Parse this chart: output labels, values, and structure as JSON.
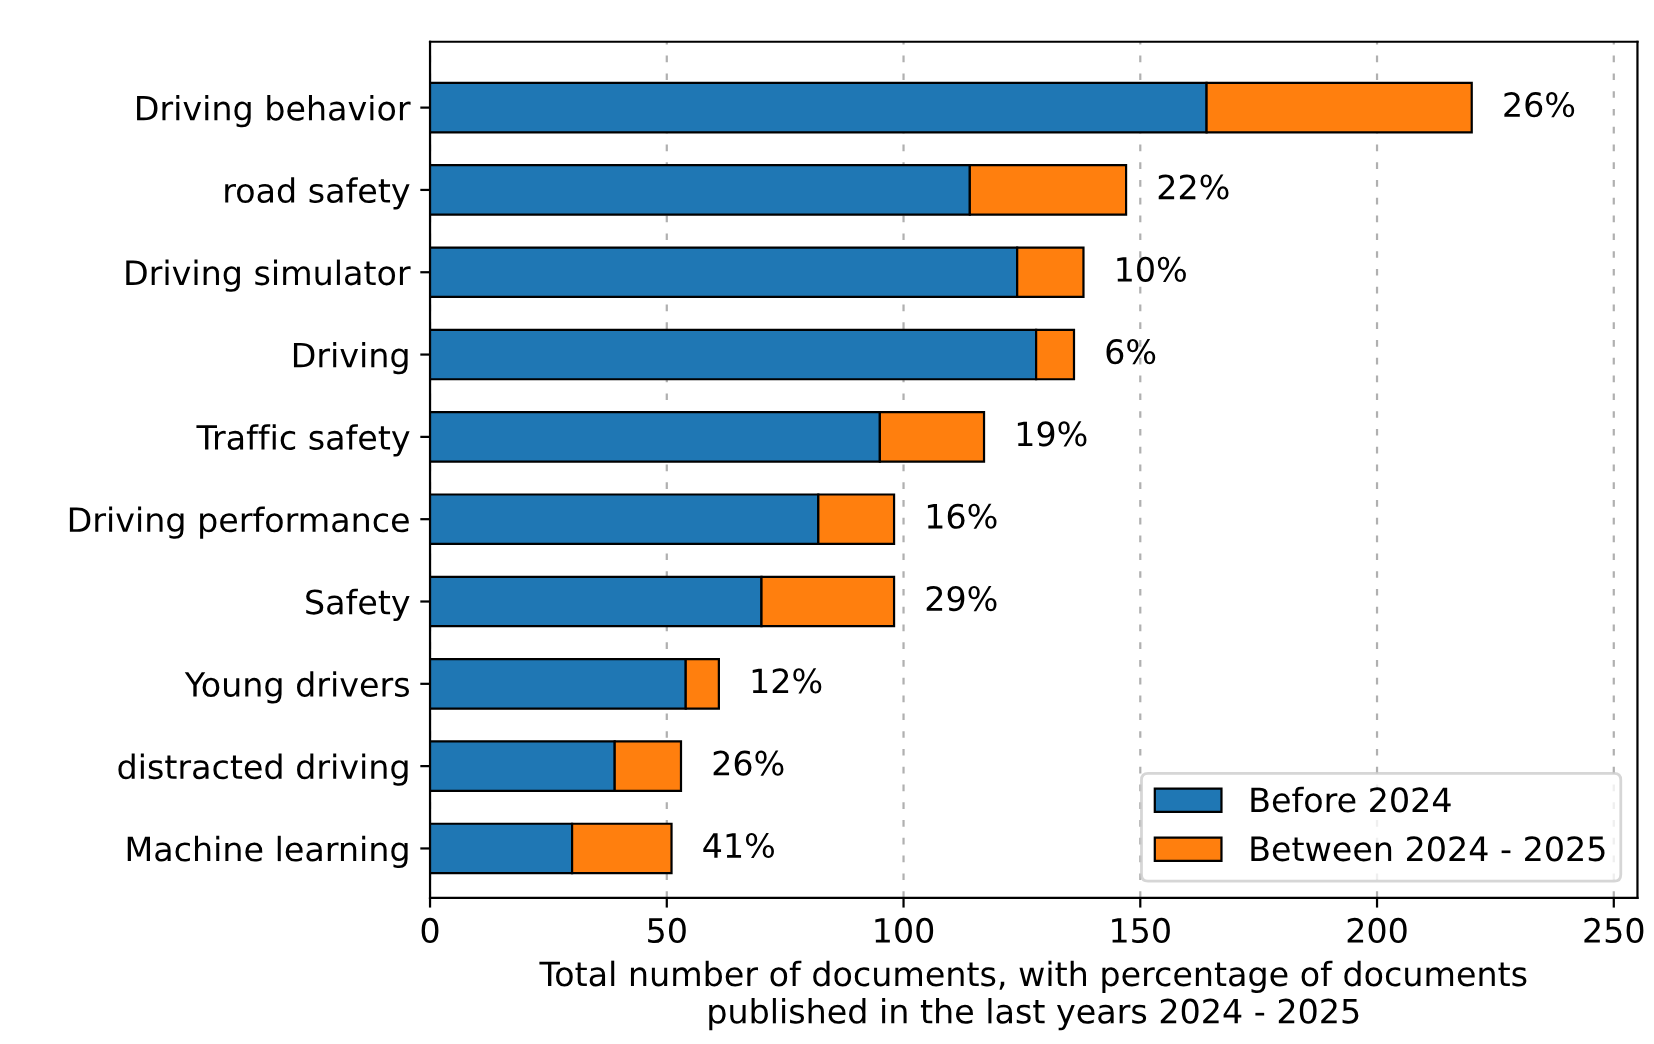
{
  "chart_data": {
    "type": "bar",
    "orientation": "horizontal",
    "stacked": true,
    "categories": [
      "Driving behavior",
      "road safety",
      "Driving simulator",
      "Driving",
      "Traffic safety",
      "Driving performance",
      "Safety",
      "Young drivers",
      "distracted driving",
      "Machine learning"
    ],
    "series": [
      {
        "name": "Before 2024",
        "color": "#1f77b4",
        "values": [
          164,
          114,
          124,
          128,
          95,
          82,
          70,
          54,
          39,
          30
        ]
      },
      {
        "name": "Between 2024 - 2025",
        "color": "#ff7f0e",
        "values": [
          56,
          33,
          14,
          8,
          22,
          16,
          28,
          7,
          14,
          21
        ]
      }
    ],
    "annotations": [
      {
        "text": "26%",
        "x": 220,
        "y": "Driving behavior"
      },
      {
        "text": "22%",
        "x": 147,
        "y": "road safety"
      },
      {
        "text": "10%",
        "x": 138,
        "y": "Driving simulator"
      },
      {
        "text": "6%",
        "x": 136,
        "y": "Driving"
      },
      {
        "text": "19%",
        "x": 117,
        "y": "Traffic safety"
      },
      {
        "text": "16%",
        "x": 98,
        "y": "Driving performance"
      },
      {
        "text": "29%",
        "x": 98,
        "y": "Safety"
      },
      {
        "text": "12%",
        "x": 61,
        "y": "Young drivers"
      },
      {
        "text": "26%",
        "x": 53,
        "y": "distracted driving"
      },
      {
        "text": "41%",
        "x": 51,
        "y": "Machine learning"
      }
    ],
    "xlabel": "Total number of documents, with percentage of documents\npublished in the last years 2024 - 2025",
    "xlim": [
      0,
      255
    ],
    "xticks": [
      0,
      50,
      100,
      150,
      200,
      250
    ],
    "grid": "x",
    "legend": "bottom right"
  }
}
